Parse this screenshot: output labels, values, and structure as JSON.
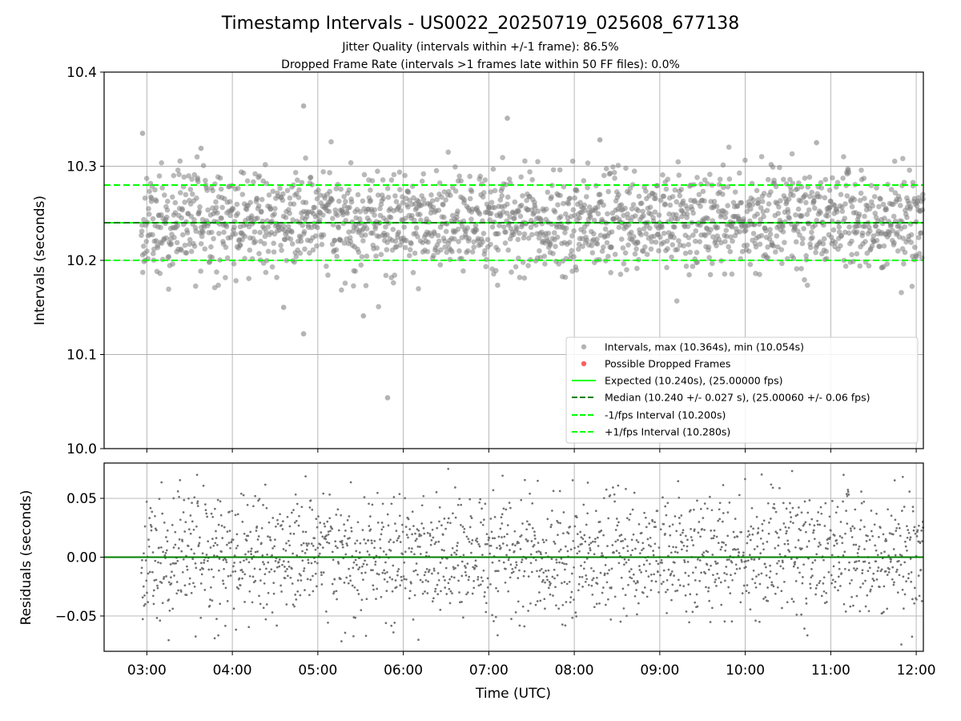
{
  "title": "Timestamp Intervals - US0022_20250719_025608_677138",
  "subtitle_1": "Jitter Quality (intervals within +/-1 frame): 86.5%",
  "subtitle_2": "Dropped Frame Rate (intervals >1 frames late within 50 FF files): 0.0%",
  "colors": {
    "points": "#808080",
    "dropped": "#ff4d4d",
    "expected": "#00ff00",
    "median": "#008000",
    "fps_band": "#00ff00",
    "grid": "#b0b0b0"
  },
  "chart_data": [
    {
      "type": "scatter",
      "panel": "intervals",
      "ylabel": "Intervals (seconds)",
      "ylim": [
        10.0,
        10.4
      ],
      "yticks": [
        10.0,
        10.1,
        10.2,
        10.3,
        10.4
      ],
      "ytick_labels": [
        "10.0",
        "10.1",
        "10.2",
        "10.3",
        "10.4"
      ],
      "xlim": [
        "02:30",
        "12:05"
      ],
      "grid": true,
      "legend_position": "lower-right",
      "legend": [
        "Intervals, max (10.364s), min (10.054s)",
        "Possible Dropped Frames",
        "Expected (10.240s), (25.00000 fps)",
        "Median (10.240 +/- 0.027 s), (25.00060 +/- 0.06 fps)",
        "-1/fps Interval (10.200s)",
        "+1/fps Interval (10.280s)"
      ],
      "reference_lines": {
        "expected": 10.24,
        "median": 10.24,
        "minus_one_fps": 10.2,
        "plus_one_fps": 10.28
      },
      "series_summary": {
        "count": 3174,
        "start": "02:56",
        "end": "12:05",
        "spacing_seconds": 10.24,
        "median": 10.24,
        "std": 0.027,
        "max": 10.364,
        "min": 10.054
      },
      "notable_points": [
        {
          "x": "02:57",
          "y": 10.335
        },
        {
          "x": "04:50",
          "y": 10.364
        },
        {
          "x": "04:50",
          "y": 10.122
        },
        {
          "x": "05:49",
          "y": 10.054
        },
        {
          "x": "07:13",
          "y": 10.351
        },
        {
          "x": "08:18",
          "y": 10.328
        },
        {
          "x": "10:50",
          "y": 10.325
        },
        {
          "x": "05:32",
          "y": 10.141
        },
        {
          "x": "03:38",
          "y": 10.319
        },
        {
          "x": "04:36",
          "y": 10.15
        }
      ]
    },
    {
      "type": "scatter",
      "panel": "residuals",
      "ylabel": "Residuals (seconds)",
      "xlabel": "Time (UTC)",
      "ylim": [
        -0.08,
        0.08
      ],
      "yticks": [
        0.05,
        0.0,
        -0.05
      ],
      "ytick_labels": [
        "0.05",
        "0.00",
        "−0.05"
      ],
      "xlim": [
        "02:30",
        "12:05"
      ],
      "xticks": [
        "03:00",
        "04:00",
        "05:00",
        "06:00",
        "07:00",
        "08:00",
        "09:00",
        "10:00",
        "11:00",
        "12:00"
      ],
      "zero_line": 0.0,
      "grid": true
    }
  ]
}
